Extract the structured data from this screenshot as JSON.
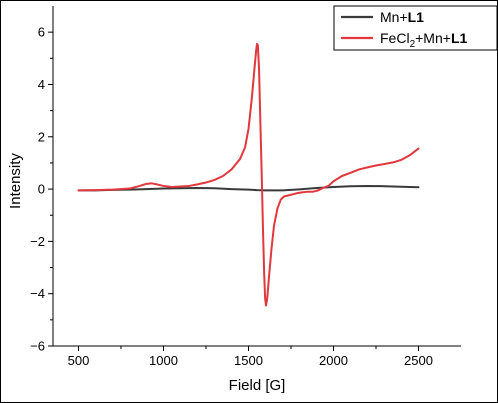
{
  "chart_data": {
    "type": "line",
    "xlabel": "Field [G]",
    "ylabel": "Intensity",
    "xlim": [
      350,
      2750
    ],
    "ylim": [
      -6,
      7
    ],
    "xticks": [
      500,
      1000,
      1500,
      2000,
      2500
    ],
    "yticks": [
      -6,
      -4,
      -2,
      0,
      2,
      4,
      6
    ],
    "legend_position": "top-right",
    "series": [
      {
        "name": "Mn+L1",
        "name_parts": {
          "pre": "Mn+",
          "bold": "L1"
        },
        "color": "#3a3a3a",
        "points": [
          [
            500,
            -0.05
          ],
          [
            600,
            -0.05
          ],
          [
            700,
            -0.03
          ],
          [
            800,
            -0.02
          ],
          [
            900,
            0.0
          ],
          [
            1000,
            0.02
          ],
          [
            1100,
            0.03
          ],
          [
            1200,
            0.04
          ],
          [
            1300,
            0.03
          ],
          [
            1400,
            0.0
          ],
          [
            1500,
            -0.02
          ],
          [
            1550,
            -0.04
          ],
          [
            1600,
            -0.05
          ],
          [
            1700,
            -0.05
          ],
          [
            1800,
            -0.01
          ],
          [
            1900,
            0.04
          ],
          [
            2000,
            0.08
          ],
          [
            2100,
            0.11
          ],
          [
            2200,
            0.12
          ],
          [
            2300,
            0.11
          ],
          [
            2400,
            0.09
          ],
          [
            2500,
            0.07
          ]
        ]
      },
      {
        "name": "FeCl2+Mn+L1",
        "name_parts": {
          "pre": "FeCl",
          "sub": "2",
          "mid": "+Mn+",
          "bold": "L1"
        },
        "color": "#e0383c",
        "points": [
          [
            500,
            -0.05
          ],
          [
            600,
            -0.04
          ],
          [
            700,
            -0.02
          ],
          [
            800,
            0.02
          ],
          [
            850,
            0.1
          ],
          [
            900,
            0.2
          ],
          [
            930,
            0.22
          ],
          [
            960,
            0.18
          ],
          [
            1000,
            0.12
          ],
          [
            1050,
            0.08
          ],
          [
            1100,
            0.1
          ],
          [
            1150,
            0.12
          ],
          [
            1200,
            0.18
          ],
          [
            1250,
            0.25
          ],
          [
            1300,
            0.35
          ],
          [
            1350,
            0.5
          ],
          [
            1400,
            0.75
          ],
          [
            1450,
            1.15
          ],
          [
            1480,
            1.6
          ],
          [
            1500,
            2.3
          ],
          [
            1520,
            3.5
          ],
          [
            1535,
            4.6
          ],
          [
            1545,
            5.3
          ],
          [
            1550,
            5.55
          ],
          [
            1555,
            5.5
          ],
          [
            1562,
            4.6
          ],
          [
            1570,
            2.5
          ],
          [
            1578,
            0.5
          ],
          [
            1585,
            -1.5
          ],
          [
            1592,
            -3.2
          ],
          [
            1598,
            -4.2
          ],
          [
            1603,
            -4.45
          ],
          [
            1610,
            -4.2
          ],
          [
            1620,
            -3.4
          ],
          [
            1635,
            -2.3
          ],
          [
            1650,
            -1.4
          ],
          [
            1670,
            -0.75
          ],
          [
            1690,
            -0.4
          ],
          [
            1710,
            -0.28
          ],
          [
            1730,
            -0.25
          ],
          [
            1760,
            -0.2
          ],
          [
            1790,
            -0.15
          ],
          [
            1820,
            -0.12
          ],
          [
            1850,
            -0.1
          ],
          [
            1880,
            -0.1
          ],
          [
            1910,
            -0.05
          ],
          [
            1940,
            0.05
          ],
          [
            1970,
            0.12
          ],
          [
            2000,
            0.3
          ],
          [
            2050,
            0.5
          ],
          [
            2100,
            0.62
          ],
          [
            2150,
            0.75
          ],
          [
            2200,
            0.83
          ],
          [
            2250,
            0.9
          ],
          [
            2300,
            0.96
          ],
          [
            2350,
            1.02
          ],
          [
            2400,
            1.12
          ],
          [
            2450,
            1.3
          ],
          [
            2500,
            1.55
          ]
        ]
      }
    ]
  }
}
